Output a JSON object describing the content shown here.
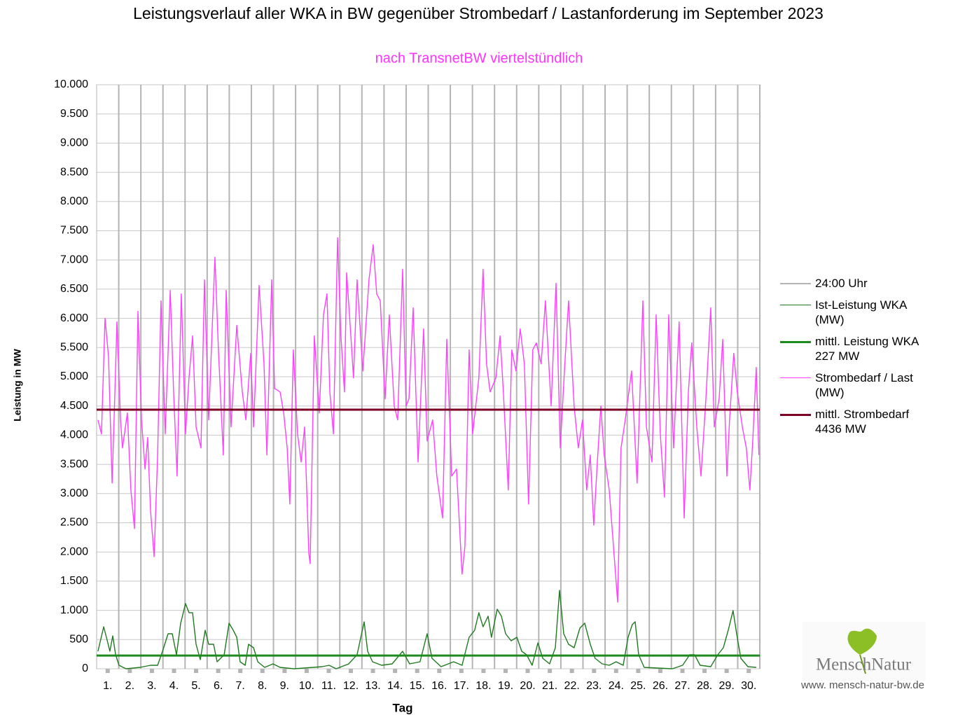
{
  "chart_data": {
    "type": "line",
    "title": "Leistungsverlauf aller WKA in BW gegenüber  Strombedarf / Lastanforderung im September 2023",
    "subtitle": "nach TransnetBW viertelstündlich",
    "subtitle_color": "#ff33ff",
    "y_label": "Leistung in MW",
    "x_label": "Tag",
    "annotations": [
      "MenschNatur",
      "www. mensch-natur-bw.de"
    ],
    "xlim": [
      0,
      30
    ],
    "xticks": [
      {
        "value": 0.5,
        "label": "1."
      },
      {
        "value": 1.5,
        "label": "2."
      },
      {
        "value": 2.5,
        "label": "3."
      },
      {
        "value": 3.5,
        "label": "4."
      },
      {
        "value": 4.5,
        "label": "5."
      },
      {
        "value": 5.5,
        "label": "6."
      },
      {
        "value": 6.5,
        "label": "7."
      },
      {
        "value": 7.5,
        "label": "8."
      },
      {
        "value": 8.5,
        "label": "9."
      },
      {
        "value": 9.5,
        "label": "10."
      },
      {
        "value": 10.5,
        "label": "11."
      },
      {
        "value": 11.5,
        "label": "12."
      },
      {
        "value": 12.5,
        "label": "13."
      },
      {
        "value": 13.5,
        "label": "14."
      },
      {
        "value": 14.5,
        "label": "15."
      },
      {
        "value": 15.5,
        "label": "16."
      },
      {
        "value": 16.5,
        "label": "17."
      },
      {
        "value": 17.5,
        "label": "18."
      },
      {
        "value": 18.5,
        "label": "19."
      },
      {
        "value": 19.5,
        "label": "20."
      },
      {
        "value": 20.5,
        "label": "21."
      },
      {
        "value": 21.5,
        "label": "22."
      },
      {
        "value": 22.5,
        "label": "23."
      },
      {
        "value": 23.5,
        "label": "24."
      },
      {
        "value": 24.5,
        "label": "25."
      },
      {
        "value": 25.5,
        "label": "26."
      },
      {
        "value": 26.5,
        "label": "27."
      },
      {
        "value": 27.5,
        "label": "28."
      },
      {
        "value": 28.5,
        "label": "29."
      },
      {
        "value": 29.5,
        "label": "30."
      }
    ],
    "ylim": [
      0,
      10000
    ],
    "yticks": [
      0,
      500,
      {
        "value": 1000,
        "label": "1.000"
      },
      {
        "value": 1500,
        "label": "1.500"
      },
      {
        "value": 2000,
        "label": "2.000"
      },
      {
        "value": 2500,
        "label": "2.500"
      },
      {
        "value": 3000,
        "label": "3.000"
      },
      {
        "value": 3500,
        "label": "3.500"
      },
      {
        "value": 4000,
        "label": "4.000"
      },
      {
        "value": 4500,
        "label": "4.500"
      },
      {
        "value": 5000,
        "label": "5.000"
      },
      {
        "value": 5500,
        "label": "5.500"
      },
      {
        "value": 6000,
        "label": "6.000"
      },
      {
        "value": 6500,
        "label": "6.500"
      },
      {
        "value": 7000,
        "label": "7.000"
      },
      {
        "value": 7500,
        "label": "7.500"
      },
      {
        "value": 8000,
        "label": "8.000"
      },
      {
        "value": 8500,
        "label": "8.500"
      },
      {
        "value": 9000,
        "label": "9.000"
      },
      {
        "value": 9500,
        "label": "9.500"
      },
      {
        "value": 10000,
        "label": "10.000"
      }
    ],
    "grid": true,
    "legend": "right",
    "series": [
      {
        "name": "24:00 Uhr",
        "color": "#b4b4b4",
        "x": [
          1,
          2,
          3,
          4,
          5,
          6,
          7,
          8,
          9,
          10,
          11,
          12,
          13,
          14,
          15,
          16,
          17,
          18,
          19,
          20,
          21,
          22,
          23,
          24,
          25,
          26,
          27,
          28,
          29,
          30
        ]
      },
      {
        "name": "Ist-Leistung WKA (MW)",
        "color": "#1f7a1f",
        "x": [
          0.06,
          0.32,
          0.48,
          0.6,
          0.73,
          0.86,
          1.01,
          1.33,
          1.96,
          2.44,
          2.76,
          2.98,
          3.23,
          3.42,
          3.61,
          3.8,
          4.02,
          4.18,
          4.34,
          4.5,
          4.69,
          4.91,
          5.07,
          5.29,
          5.45,
          5.77,
          5.99,
          6.18,
          6.34,
          6.49,
          6.72,
          6.87,
          7.1,
          7.29,
          7.6,
          7.98,
          8.3,
          8.93,
          10.2,
          10.52,
          10.83,
          11.4,
          11.78,
          12.1,
          12.26,
          12.48,
          12.89,
          13.37,
          13.84,
          14.16,
          14.63,
          14.95,
          15.17,
          15.58,
          16.15,
          16.53,
          16.85,
          17.1,
          17.29,
          17.48,
          17.71,
          17.86,
          18.12,
          18.31,
          18.5,
          18.75,
          19.01,
          19.23,
          19.45,
          19.7,
          19.96,
          20.18,
          20.49,
          20.75,
          20.94,
          21.13,
          21.35,
          21.6,
          21.86,
          22.08,
          22.33,
          22.55,
          22.87,
          23.19,
          23.5,
          23.82,
          24.04,
          24.23,
          24.36,
          24.52,
          24.77,
          26.04,
          26.51,
          26.83,
          27.05,
          27.3,
          27.78,
          28.1,
          28.35,
          28.57,
          28.79,
          28.95,
          29.14,
          29.46,
          29.84
        ],
        "values": [
          300,
          720,
          480,
          300,
          564,
          240,
          60,
          0,
          24,
          60,
          60,
          300,
          600,
          600,
          240,
          780,
          1116,
          960,
          960,
          420,
          156,
          660,
          420,
          420,
          120,
          240,
          780,
          660,
          540,
          120,
          60,
          420,
          360,
          120,
          24,
          84,
          24,
          0,
          36,
          60,
          0,
          84,
          240,
          804,
          300,
          120,
          60,
          84,
          300,
          84,
          120,
          600,
          180,
          36,
          120,
          60,
          540,
          660,
          960,
          720,
          900,
          540,
          1020,
          900,
          600,
          480,
          540,
          300,
          240,
          60,
          444,
          180,
          84,
          360,
          1344,
          600,
          420,
          360,
          696,
          780,
          420,
          180,
          84,
          60,
          120,
          60,
          540,
          756,
          804,
          240,
          24,
          0,
          60,
          240,
          240,
          60,
          36,
          240,
          360,
          660,
          996,
          600,
          180,
          36,
          24
        ]
      },
      {
        "name": "mittl. Leistung WKA 227 MW",
        "color": "#1d8a1d",
        "value": 227
      },
      {
        "name": "Strombedarf / Last (MW)",
        "color": "#ff40ff",
        "x": [
          0.06,
          0.22,
          0.38,
          0.54,
          0.7,
          0.79,
          0.92,
          1.08,
          1.17,
          1.39,
          1.55,
          1.71,
          1.87,
          2.03,
          2.19,
          2.31,
          2.44,
          2.6,
          2.76,
          2.91,
          3.1,
          3.33,
          3.48,
          3.64,
          3.83,
          4.02,
          4.18,
          4.34,
          4.5,
          4.72,
          4.88,
          5.07,
          5.35,
          5.51,
          5.73,
          5.86,
          6.08,
          6.34,
          6.59,
          6.75,
          6.97,
          7.1,
          7.35,
          7.57,
          7.7,
          7.92,
          8.05,
          8.3,
          8.46,
          8.62,
          8.74,
          8.9,
          9.09,
          9.25,
          9.41,
          9.6,
          9.66,
          9.85,
          10.07,
          10.26,
          10.42,
          10.55,
          10.71,
          10.9,
          11.05,
          11.21,
          11.31,
          11.5,
          11.62,
          11.78,
          12.04,
          12.32,
          12.51,
          12.67,
          12.83,
          13.05,
          13.24,
          13.46,
          13.62,
          13.84,
          14.0,
          14.13,
          14.32,
          14.54,
          14.79,
          14.95,
          15.2,
          15.39,
          15.65,
          15.84,
          16.06,
          16.28,
          16.53,
          16.66,
          16.85,
          17.01,
          17.29,
          17.48,
          17.64,
          17.8,
          18.06,
          18.25,
          18.4,
          18.62,
          18.78,
          18.97,
          19.16,
          19.35,
          19.54,
          19.73,
          19.89,
          20.11,
          20.3,
          20.56,
          20.78,
          20.97,
          21.16,
          21.35,
          21.6,
          21.79,
          21.98,
          22.17,
          22.33,
          22.49,
          22.65,
          22.81,
          22.96,
          23.19,
          23.38,
          23.57,
          23.72,
          23.91,
          24.2,
          24.45,
          24.71,
          24.87,
          25.12,
          25.31,
          25.5,
          25.69,
          25.88,
          26.1,
          26.35,
          26.58,
          26.77,
          26.92,
          27.15,
          27.34,
          27.56,
          27.78,
          27.94,
          28.16,
          28.32,
          28.51,
          28.63,
          28.82,
          28.98,
          29.21,
          29.39,
          29.55,
          29.68,
          29.84,
          29.96
        ],
        "values": [
          4260,
          4020,
          6000,
          5340,
          3180,
          4260,
          5940,
          4260,
          3780,
          4380,
          3060,
          2400,
          6120,
          4260,
          3420,
          3960,
          2700,
          1920,
          3660,
          6300,
          4020,
          6480,
          4740,
          3300,
          6420,
          4020,
          4980,
          5700,
          4140,
          3780,
          6660,
          4260,
          7044,
          5460,
          3660,
          6480,
          4140,
          5880,
          4740,
          4260,
          5400,
          4140,
          6564,
          5220,
          3660,
          6660,
          4800,
          4740,
          4380,
          3780,
          2820,
          5460,
          4020,
          3540,
          4140,
          1980,
          1800,
          5700,
          4380,
          6060,
          6420,
          4740,
          4020,
          7380,
          5700,
          4740,
          6780,
          5700,
          4980,
          6660,
          5100,
          6660,
          7260,
          6420,
          6300,
          4620,
          6060,
          4500,
          4260,
          6840,
          4500,
          4620,
          6180,
          3540,
          5820,
          3900,
          4260,
          3300,
          2580,
          5640,
          3300,
          3420,
          1620,
          2100,
          5460,
          4020,
          4980,
          6840,
          5220,
          4740,
          4980,
          5700,
          4740,
          3060,
          5460,
          5100,
          5820,
          5220,
          2820,
          5460,
          5580,
          5220,
          6300,
          4500,
          6600,
          3780,
          5100,
          6300,
          4500,
          3780,
          4260,
          3060,
          3660,
          2460,
          3540,
          4500,
          3660,
          3060,
          2100,
          1140,
          3780,
          4260,
          5100,
          3180,
          6300,
          4140,
          3540,
          6060,
          4020,
          2940,
          6060,
          3780,
          5940,
          2580,
          4740,
          5580,
          4140,
          3300,
          4620,
          6180,
          4140,
          4620,
          5640,
          3300,
          4260,
          5400,
          4740,
          4140,
          3780,
          3060,
          3900,
          5160,
          3660
        ]
      },
      {
        "name": "mittl. Strombedarf 4436 MW",
        "color": "#7b0022",
        "value": 4436
      }
    ]
  }
}
